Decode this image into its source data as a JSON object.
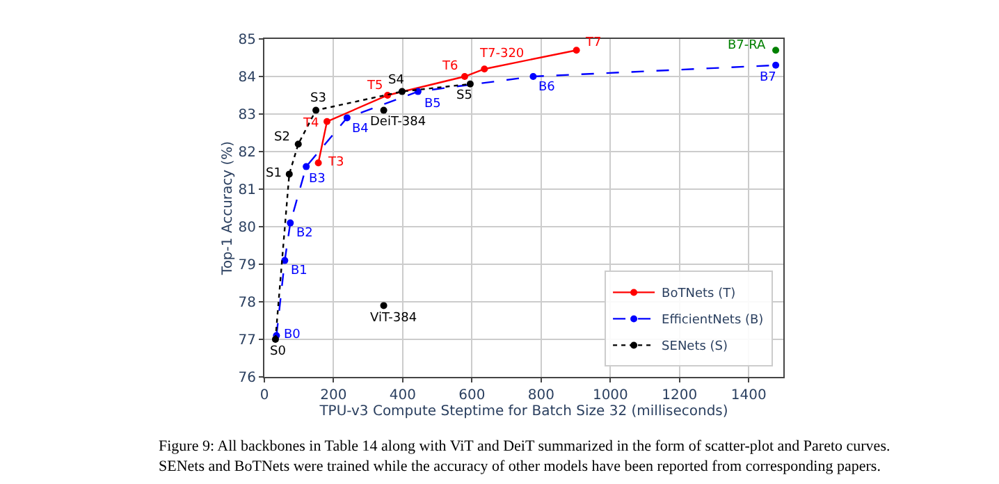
{
  "chart_data": {
    "type": "line",
    "xlabel": "TPU-v3 Compute Steptime for Batch Size 32 (milliseconds)",
    "ylabel": "Top-1 Accuracy (%)",
    "xlim": [
      0,
      1500
    ],
    "xticks": [
      0,
      200,
      400,
      600,
      800,
      1000,
      1200,
      1400
    ],
    "ylim": [
      76,
      85
    ],
    "yticks": [
      76,
      77,
      78,
      79,
      80,
      81,
      82,
      83,
      84,
      85
    ],
    "grid": true,
    "legend": "bottom right",
    "marker": "circle",
    "series": [
      {
        "name": "BoTNets (T)",
        "color": "#ff0000",
        "line_style": "solid",
        "x": [
          156,
          181,
          356,
          579,
          636,
          902
        ],
        "values": [
          81.7,
          82.8,
          83.5,
          84.0,
          84.2,
          84.7
        ]
      },
      {
        "name": "EfficientNets (B)",
        "color": "#0000ff",
        "line_style": "dashed",
        "x": [
          35,
          59,
          75,
          121,
          239,
          444,
          777,
          1478
        ],
        "values": [
          77.1,
          79.1,
          80.1,
          81.6,
          82.9,
          83.6,
          84.0,
          84.3
        ]
      },
      {
        "name": "SENets (S)",
        "color": "#000000",
        "line_style": "dotted",
        "x": [
          32,
          72,
          98,
          149,
          398,
          595
        ],
        "values": [
          77.0,
          81.4,
          82.2,
          83.1,
          83.6,
          83.8
        ]
      },
      {
        "type": "scatter",
        "color": "#000000",
        "x": [
          345,
          345
        ],
        "values": [
          83.1,
          77.9
        ]
      },
      {
        "type": "scatter",
        "color": "#008000",
        "x": [
          1478
        ],
        "values": [
          84.7
        ]
      }
    ],
    "annotations": [
      {
        "text": "T3",
        "x": 156,
        "y": 81.7
      },
      {
        "text": "T4",
        "x": 181,
        "y": 82.8
      },
      {
        "text": "T5",
        "x": 356,
        "y": 83.5
      },
      {
        "text": "T6",
        "x": 579,
        "y": 84.0
      },
      {
        "text": "T7-320",
        "x": 636,
        "y": 84.2
      },
      {
        "text": "T7",
        "x": 902,
        "y": 84.7
      },
      {
        "text": "B0",
        "x": 35,
        "y": 77.1
      },
      {
        "text": "B1",
        "x": 59,
        "y": 79.1
      },
      {
        "text": "B2",
        "x": 75,
        "y": 80.1
      },
      {
        "text": "B3",
        "x": 121,
        "y": 81.6
      },
      {
        "text": "B4",
        "x": 239,
        "y": 82.9
      },
      {
        "text": "B5",
        "x": 444,
        "y": 83.6
      },
      {
        "text": "B6",
        "x": 777,
        "y": 84.0
      },
      {
        "text": "B7",
        "x": 1478,
        "y": 84.3
      },
      {
        "text": "S0",
        "x": 32,
        "y": 77.0
      },
      {
        "text": "S1",
        "x": 72,
        "y": 81.4
      },
      {
        "text": "S2",
        "x": 98,
        "y": 82.2
      },
      {
        "text": "S3",
        "x": 149,
        "y": 83.1
      },
      {
        "text": "S4",
        "x": 398,
        "y": 83.6
      },
      {
        "text": "S5",
        "x": 595,
        "y": 83.8
      },
      {
        "text": "DeiT-384",
        "x": 345,
        "y": 83.1
      },
      {
        "text": "ViT-384",
        "x": 345,
        "y": 77.9
      },
      {
        "text": "B7-RA",
        "x": 1478,
        "y": 84.7
      },
      "Figure 9: All backbones in Table 14 along with ViT and DeiT summarized in the form of scatter-plot and Pareto curves. SENets and BoTNets were trained while the accuracy of other models have been reported from corresponding papers."
    ]
  }
}
